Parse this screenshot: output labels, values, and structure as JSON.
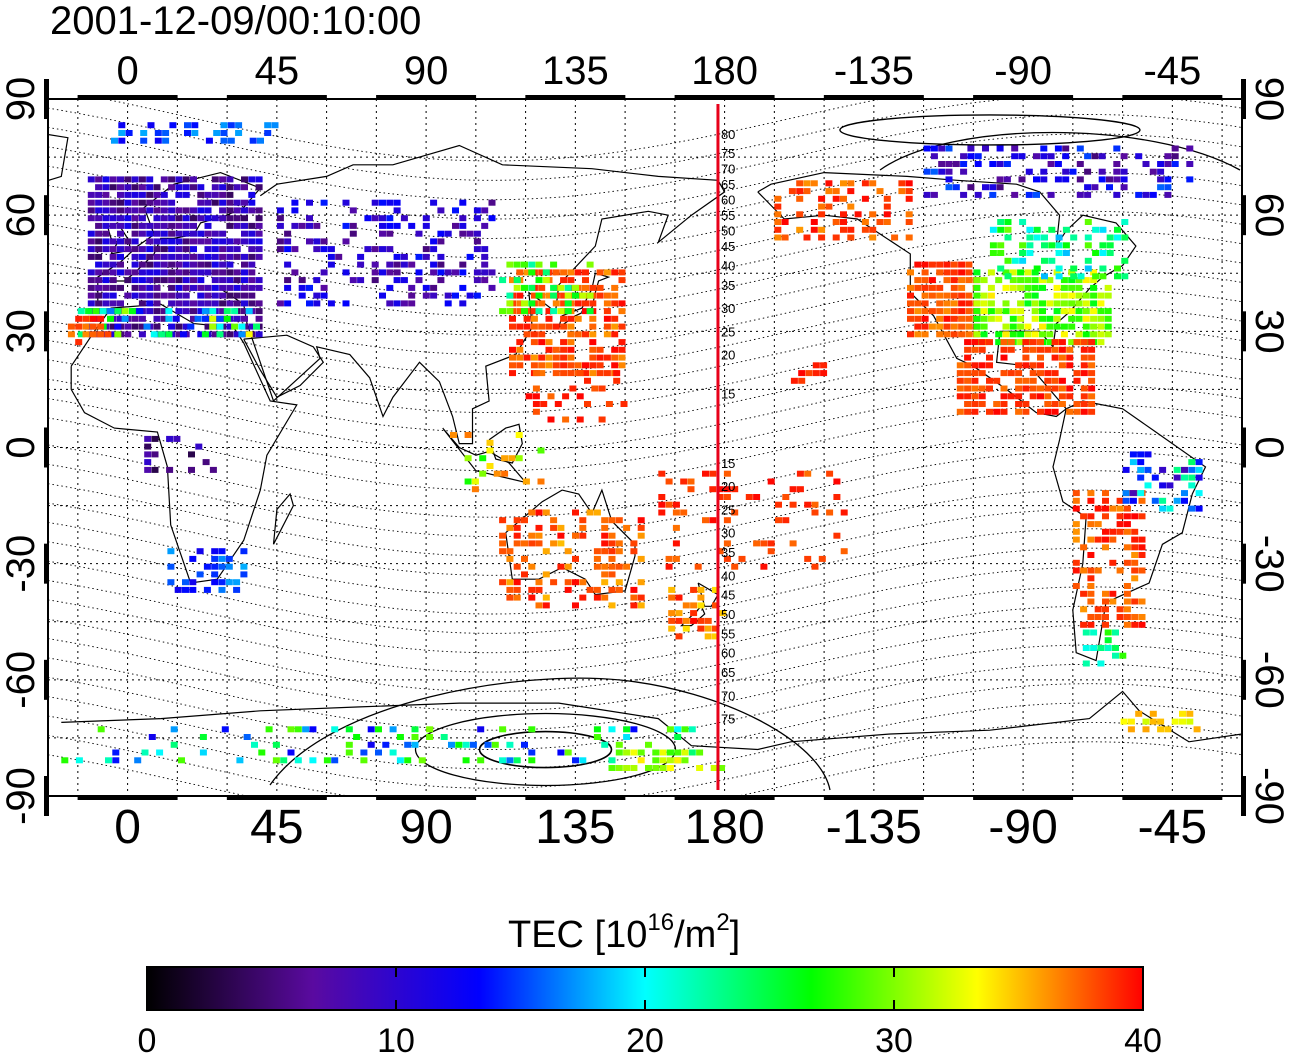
{
  "title": "2001-12-09/00:10:00",
  "map": {
    "lon_ticks": [
      "0",
      "45",
      "90",
      "135",
      "180",
      "-135",
      "-90",
      "-45"
    ],
    "lon_tick_values": [
      0,
      45,
      90,
      135,
      180,
      225,
      270,
      315
    ],
    "lon_range": [
      -24,
      336
    ],
    "lat_ticks": [
      "90",
      "60",
      "30",
      "0",
      "-30",
      "-60",
      "-90"
    ],
    "lat_tick_values": [
      90,
      60,
      30,
      0,
      -30,
      -60,
      -90
    ],
    "lat_range": [
      -90,
      90
    ],
    "grid": "dotted, 15 degree spacing",
    "meridian_line": {
      "lon": 178,
      "color": "#e8001a"
    },
    "contour_labels": [
      {
        "text": "80",
        "lat": 81
      },
      {
        "text": "75",
        "lat": 76
      },
      {
        "text": "70",
        "lat": 72
      },
      {
        "text": "65",
        "lat": 68
      },
      {
        "text": "60",
        "lat": 64
      },
      {
        "text": "55",
        "lat": 60
      },
      {
        "text": "50",
        "lat": 56
      },
      {
        "text": "45",
        "lat": 52
      },
      {
        "text": "40",
        "lat": 47
      },
      {
        "text": "35",
        "lat": 42
      },
      {
        "text": "30",
        "lat": 36
      },
      {
        "text": "25",
        "lat": 30
      },
      {
        "text": "20",
        "lat": 24
      },
      {
        "text": "15",
        "lat": 14
      },
      {
        "text": "15",
        "lat": -4
      },
      {
        "text": "20",
        "lat": -10
      },
      {
        "text": "25",
        "lat": -16
      },
      {
        "text": "30",
        "lat": -22
      },
      {
        "text": "35",
        "lat": -27
      },
      {
        "text": "40",
        "lat": -33
      },
      {
        "text": "45",
        "lat": -38
      },
      {
        "text": "50",
        "lat": -43
      },
      {
        "text": "55",
        "lat": -48
      },
      {
        "text": "60",
        "lat": -53
      },
      {
        "text": "65",
        "lat": -58
      },
      {
        "text": "70",
        "lat": -64
      },
      {
        "text": "75",
        "lat": -70
      }
    ]
  },
  "colorbar": {
    "label_prefix": "TEC  [10",
    "label_sup1": "16",
    "label_mid": "/m",
    "label_sup2": "2",
    "label_suffix": "]",
    "min": 0,
    "max": 40,
    "ticks": [
      "0",
      "10",
      "20",
      "30",
      "40"
    ],
    "tick_values": [
      0,
      10,
      20,
      30,
      40
    ],
    "stops": [
      "#000000",
      "#5a0aa0",
      "#0000ff",
      "#00ffff",
      "#00ff00",
      "#ffff00",
      "#ff0000"
    ]
  },
  "tec_regions": [
    {
      "name": "europe",
      "lon": [
        -12,
        40
      ],
      "lat": [
        30,
        72
      ],
      "tec": [
        4,
        12
      ],
      "density": 0.85
    },
    {
      "name": "europe-edge-south",
      "lon": [
        -15,
        40
      ],
      "lat": [
        30,
        38
      ],
      "tec": [
        12,
        34
      ],
      "density": 0.5
    },
    {
      "name": "iberia-red",
      "lon": [
        -18,
        -5
      ],
      "lat": [
        28,
        36
      ],
      "tec": [
        36,
        40
      ],
      "density": 0.6
    },
    {
      "name": "svalbard",
      "lon": [
        -5,
        45
      ],
      "lat": [
        80,
        86
      ],
      "tec": [
        12,
        18
      ],
      "density": 0.35
    },
    {
      "name": "central-asia",
      "lon": [
        45,
        110
      ],
      "lat": [
        38,
        66
      ],
      "tec": [
        5,
        14
      ],
      "density": 0.35
    },
    {
      "name": "japan-china",
      "lon": [
        115,
        150
      ],
      "lat": [
        20,
        48
      ],
      "tec": [
        36,
        40
      ],
      "density": 0.7
    },
    {
      "name": "japan-green",
      "lon": [
        112,
        140
      ],
      "lat": [
        36,
        50
      ],
      "tec": [
        22,
        32
      ],
      "density": 0.45
    },
    {
      "name": "se-asia",
      "lon": [
        120,
        150
      ],
      "lat": [
        8,
        22
      ],
      "tec": [
        37,
        40
      ],
      "density": 0.25
    },
    {
      "name": "indonesia",
      "lon": [
        95,
        125
      ],
      "lat": [
        -10,
        6
      ],
      "tec": [
        26,
        38
      ],
      "density": 0.2
    },
    {
      "name": "australia",
      "lon": [
        112,
        155
      ],
      "lat": [
        -40,
        -15
      ],
      "tec": [
        35,
        40
      ],
      "density": 0.45
    },
    {
      "name": "nz",
      "lon": [
        163,
        180
      ],
      "lat": [
        -48,
        -34
      ],
      "tec": [
        34,
        40
      ],
      "density": 0.55
    },
    {
      "name": "pacific-south",
      "lon": [
        160,
        215
      ],
      "lat": [
        -30,
        -5
      ],
      "tec": [
        37,
        40
      ],
      "density": 0.18
    },
    {
      "name": "alaska",
      "lon": [
        195,
        235
      ],
      "lat": [
        55,
        70
      ],
      "tec": [
        36,
        40
      ],
      "density": 0.45
    },
    {
      "name": "hawaii",
      "lon": [
        200,
        210
      ],
      "lat": [
        18,
        24
      ],
      "tec": [
        38,
        40
      ],
      "density": 0.6
    },
    {
      "name": "north-america-west",
      "lon": [
        235,
        255
      ],
      "lat": [
        30,
        50
      ],
      "tec": [
        36,
        40
      ],
      "density": 0.85
    },
    {
      "name": "north-america-east",
      "lon": [
        255,
        295
      ],
      "lat": [
        28,
        48
      ],
      "tec": [
        26,
        34
      ],
      "density": 0.75
    },
    {
      "name": "canada",
      "lon": [
        260,
        300
      ],
      "lat": [
        45,
        60
      ],
      "tec": [
        18,
        30
      ],
      "density": 0.4
    },
    {
      "name": "arctic-canada",
      "lon": [
        240,
        320
      ],
      "lat": [
        66,
        80
      ],
      "tec": [
        5,
        16
      ],
      "density": 0.45
    },
    {
      "name": "mexico",
      "lon": [
        250,
        290
      ],
      "lat": [
        10,
        30
      ],
      "tec": [
        37,
        40
      ],
      "density": 0.7
    },
    {
      "name": "south-america",
      "lon": [
        285,
        305
      ],
      "lat": [
        -45,
        -10
      ],
      "tec": [
        36,
        40
      ],
      "density": 0.55
    },
    {
      "name": "brazil-east",
      "lon": [
        300,
        322
      ],
      "lat": [
        -15,
        0
      ],
      "tec": [
        8,
        24
      ],
      "density": 0.4
    },
    {
      "name": "patagonia",
      "lon": [
        288,
        300
      ],
      "lat": [
        -55,
        -45
      ],
      "tec": [
        20,
        28
      ],
      "density": 0.45
    },
    {
      "name": "africa-west",
      "lon": [
        5,
        25
      ],
      "lat": [
        -5,
        5
      ],
      "tec": [
        2,
        12
      ],
      "density": 0.3
    },
    {
      "name": "south-africa",
      "lon": [
        12,
        35
      ],
      "lat": [
        -36,
        -25
      ],
      "tec": [
        12,
        18
      ],
      "density": 0.5
    },
    {
      "name": "antarctic-coast",
      "lon": [
        -20,
        170
      ],
      "lat": [
        -80,
        -70
      ],
      "tec": [
        12,
        30
      ],
      "density": 0.22
    },
    {
      "name": "antarctic-ross",
      "lon": [
        145,
        180
      ],
      "lat": [
        -82,
        -76
      ],
      "tec": [
        28,
        34
      ],
      "density": 0.4
    },
    {
      "name": "antarctic-peninsula",
      "lon": [
        295,
        322
      ],
      "lat": [
        -72,
        -66
      ],
      "tec": [
        32,
        36
      ],
      "density": 0.4
    }
  ]
}
